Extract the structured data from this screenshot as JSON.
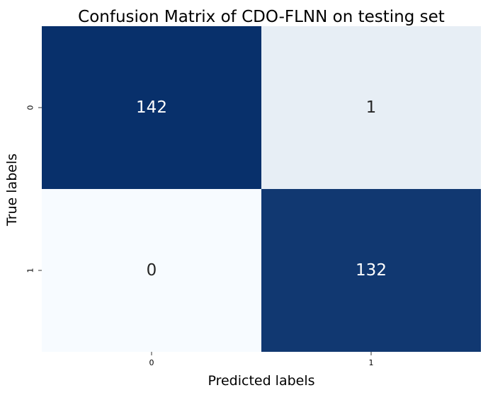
{
  "chart_data": {
    "type": "heatmap",
    "title": "Confusion Matrix of CDO-FLNN on testing set",
    "xlabel": "Predicted labels",
    "ylabel": "True labels",
    "x_categories": [
      "0",
      "1"
    ],
    "y_categories": [
      "0",
      "1"
    ],
    "values": [
      [
        142,
        1
      ],
      [
        0,
        132
      ]
    ],
    "value_range": [
      0,
      142
    ],
    "colormap": "Blues",
    "colors": {
      "max": "#08306b",
      "min": "#f7fbff",
      "high_text": "#ffffff",
      "low_text": "#262626"
    },
    "colorbar": false,
    "grid": false
  }
}
